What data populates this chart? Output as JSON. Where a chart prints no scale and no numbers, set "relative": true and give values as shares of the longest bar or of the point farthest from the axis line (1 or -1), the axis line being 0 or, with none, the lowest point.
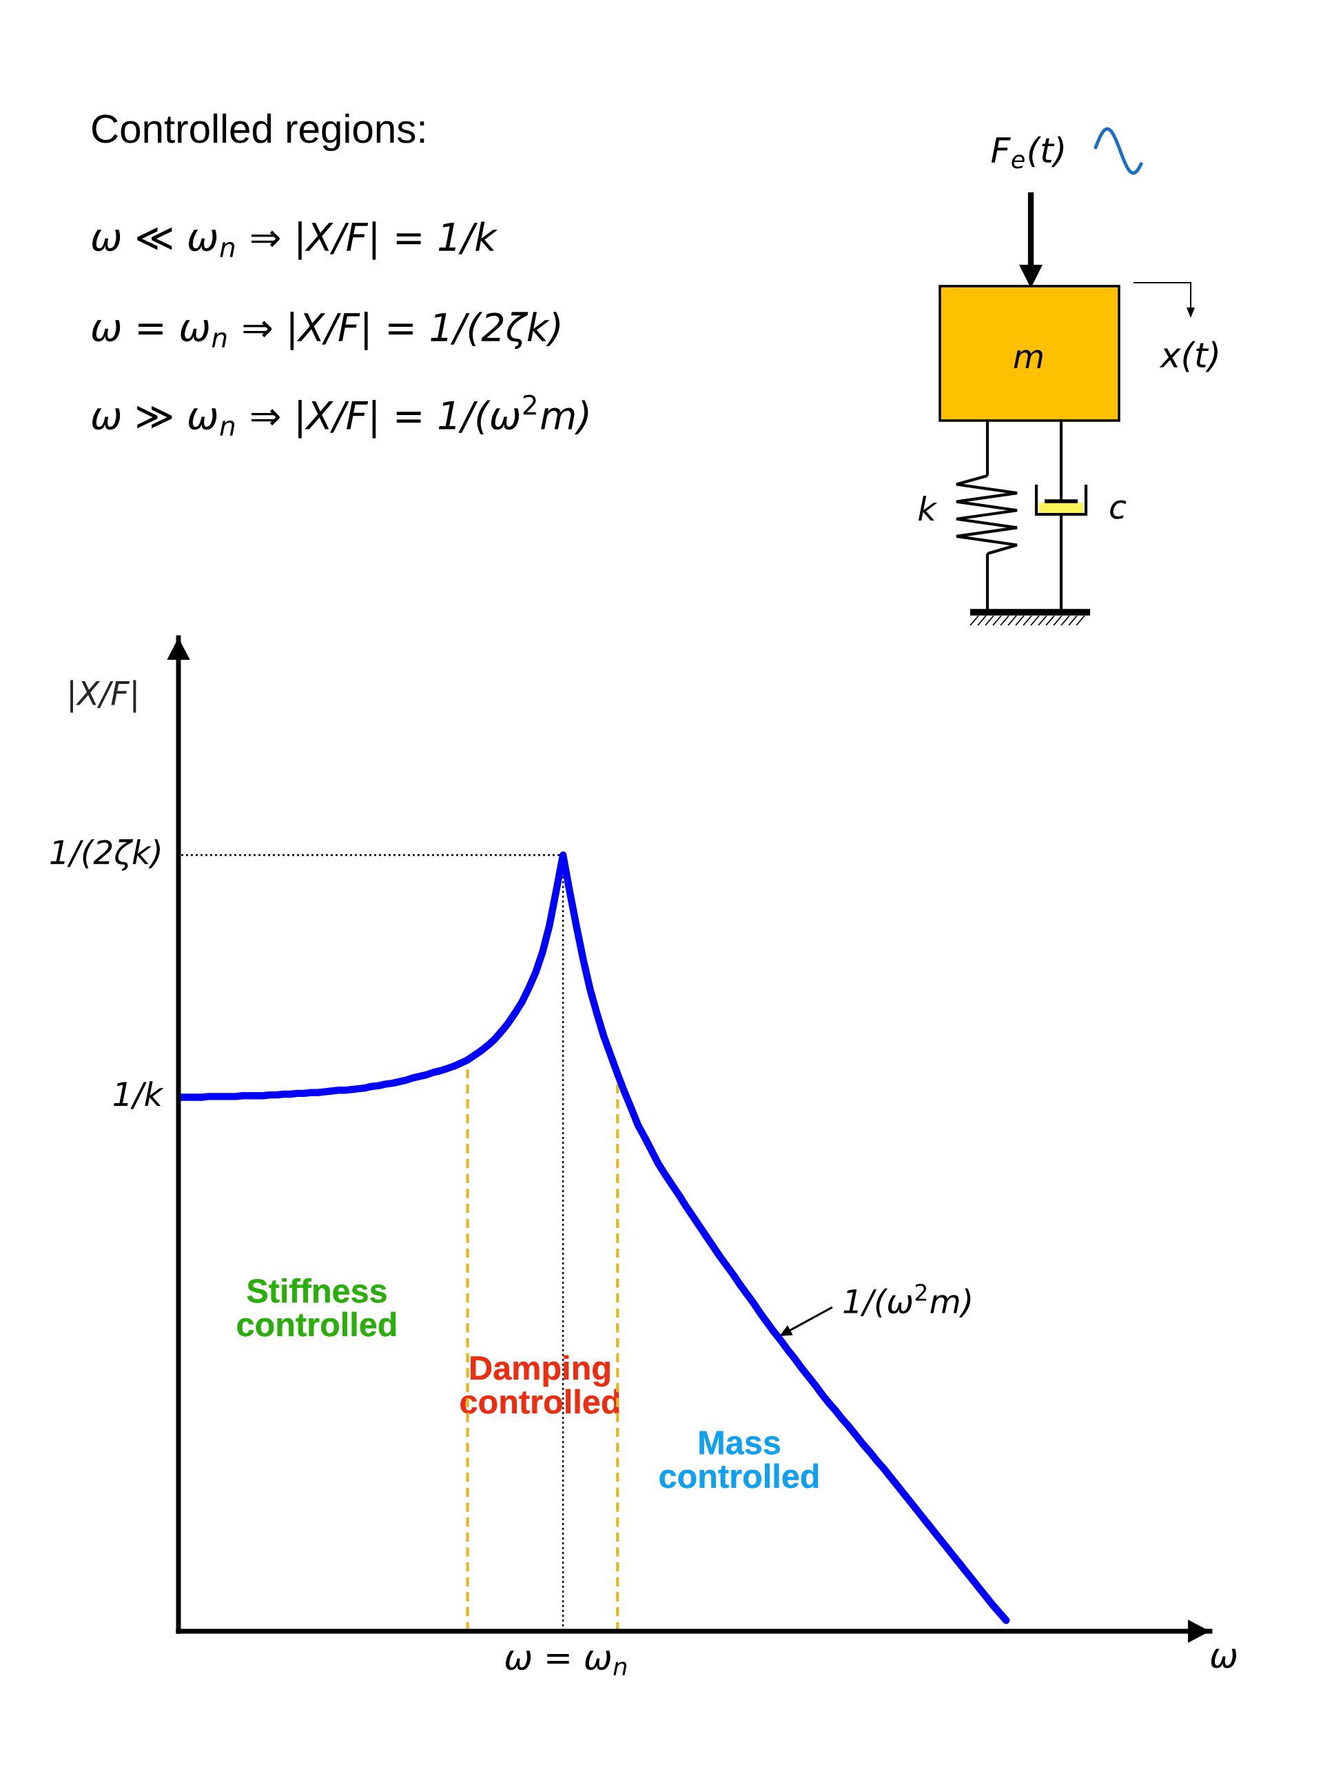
{
  "chart_data": {
    "type": "line",
    "relative": true,
    "title": "Controlled regions:",
    "ylabel": "|X/F|",
    "categories": [
      null,
      null,
      null,
      null,
      null,
      null,
      null,
      null,
      null,
      null,
      null,
      null,
      null,
      null,
      null,
      null,
      null,
      null,
      null,
      null,
      null,
      null,
      null,
      null,
      null,
      null,
      null,
      null,
      null,
      null,
      null,
      null,
      null,
      null,
      null,
      null,
      null,
      null,
      null,
      null,
      null,
      null,
      null,
      null,
      null,
      null,
      null,
      null,
      null,
      null,
      null,
      null,
      null,
      null,
      null,
      null,
      null,
      null,
      null,
      null,
      null,
      null,
      null,
      null,
      null,
      null,
      null,
      null,
      null,
      null,
      null,
      null,
      null,
      null,
      null,
      null,
      null,
      null,
      null,
      null,
      null,
      null,
      null,
      null,
      null,
      null,
      null,
      null,
      null,
      null,
      null,
      null,
      null,
      null,
      null,
      null,
      null,
      null,
      null,
      null,
      null,
      null,
      null,
      null,
      null,
      null,
      null,
      null,
      null,
      null,
      null,
      null,
      null,
      null,
      null,
      null,
      null,
      null,
      null,
      null,
      null,
      null
    ],
    "series": [
      {
        "color": "#0000ff",
        "values": [
          0.688,
          0.688,
          0.688,
          0.688,
          0.689,
          0.689,
          0.689,
          0.689,
          0.689,
          0.69,
          0.69,
          0.69,
          0.69,
          0.691,
          0.691,
          0.692,
          0.692,
          0.693,
          0.693,
          0.694,
          0.694,
          0.695,
          0.696,
          0.697,
          0.697,
          0.698,
          0.699,
          0.7,
          0.702,
          0.703,
          0.705,
          0.706,
          0.708,
          0.71,
          0.713,
          0.715,
          0.717,
          0.72,
          0.722,
          0.725,
          0.728,
          0.732,
          0.736,
          0.742,
          0.748,
          0.755,
          0.763,
          0.773,
          0.784,
          0.797,
          0.811,
          0.829,
          0.849,
          0.875,
          0.909,
          0.954,
          1.0,
          0.952,
          0.907,
          0.864,
          0.826,
          0.795,
          0.766,
          0.742,
          0.718,
          0.695,
          0.674,
          0.652,
          0.636,
          0.619,
          0.602,
          0.588,
          0.575,
          0.562,
          0.548,
          0.535,
          0.522,
          0.509,
          0.496,
          0.483,
          0.471,
          0.459,
          0.446,
          0.434,
          0.422,
          0.409,
          0.397,
          0.385,
          0.374,
          0.362,
          0.351,
          0.339,
          0.328,
          0.317,
          0.305,
          0.294,
          0.284,
          0.273,
          0.263,
          0.252,
          0.241,
          0.231,
          0.22,
          0.21,
          0.199,
          0.188,
          0.177,
          0.166,
          0.155,
          0.144,
          0.133,
          0.122,
          0.111,
          0.1,
          0.089,
          0.078,
          0.067,
          0.056,
          0.045,
          0.034,
          0.024,
          0.014
        ]
      }
    ],
    "ref_lines": [
      {
        "axis": "y",
        "value": 1.0,
        "label": "1/(2ζk)",
        "color": "#000000",
        "line_style": "dotted"
      }
    ],
    "annotations": [
      "ω ≪ ω$_{n}$ ⇒ |X/F| = 1/k",
      "ω = ω$_{n}$ ⇒ |X/F| = 1/(2ζk)",
      "ω ≫ ω$_{n}$ ⇒ |X/F| = 1/(ω$^{2}$m)",
      "1/(ω$^{2}$m)",
      "F$_{e}$(t)",
      "m",
      "x(t)",
      "k",
      "c",
      "1/k",
      "ω = ω$_{n}$",
      "ω",
      "Stiffness\ncontrolled",
      "Damping\ncontrolled",
      "Mass\ncontrolled"
    ]
  }
}
